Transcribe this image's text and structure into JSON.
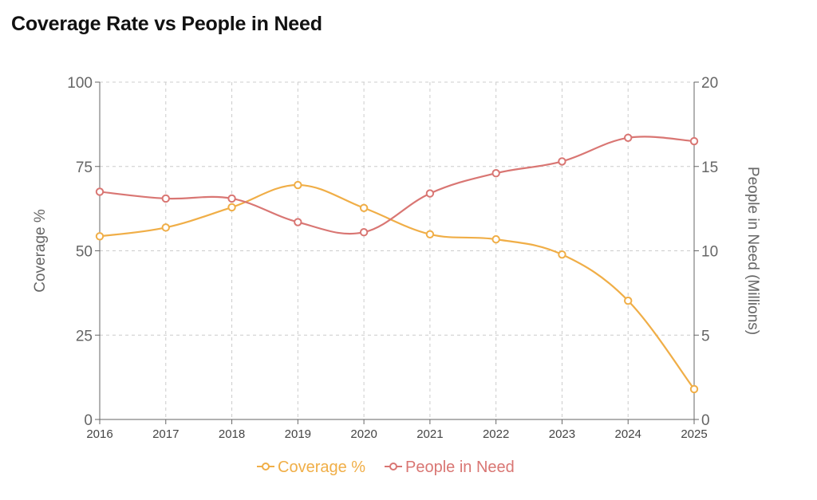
{
  "title": "Coverage Rate vs People in Need",
  "chart_data": {
    "type": "line",
    "title": "Coverage Rate vs People in Need",
    "x": [
      "2016",
      "2017",
      "2018",
      "2019",
      "2020",
      "2021",
      "2022",
      "2023",
      "2024",
      "2025"
    ],
    "series": [
      {
        "name": "Coverage %",
        "axis": "left",
        "color": "#f0ae47",
        "values": [
          54.3,
          56.9,
          62.9,
          69.5,
          62.7,
          54.9,
          53.4,
          48.9,
          35.2,
          9.0
        ]
      },
      {
        "name": "People in Need",
        "axis": "right",
        "color": "#d97673",
        "values": [
          13.5,
          13.1,
          13.1,
          11.7,
          11.1,
          13.4,
          14.6,
          15.3,
          16.7,
          16.5
        ]
      }
    ],
    "y_left": {
      "label": "Coverage %",
      "min": 0,
      "max": 100,
      "ticks": [
        "0",
        "25",
        "50",
        "75",
        "100"
      ]
    },
    "y_right": {
      "label": "People in Need (Millions)",
      "min": 0,
      "max": 20,
      "ticks": [
        "0",
        "5",
        "10",
        "15",
        "20"
      ]
    },
    "grid": true,
    "legend": "bottom-center"
  }
}
